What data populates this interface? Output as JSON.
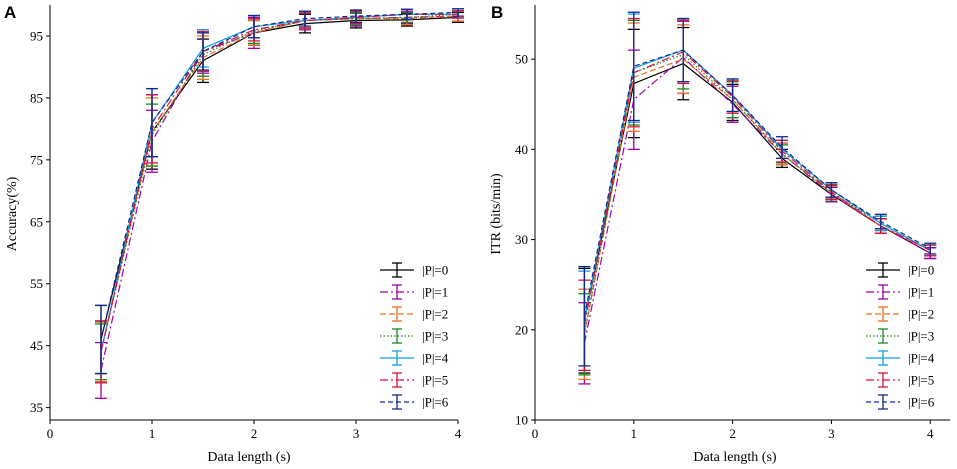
{
  "chart_data": [
    {
      "type": "line",
      "panel": "A",
      "title": "",
      "xlabel": "Data length (s)",
      "ylabel": "Accuracy(%)",
      "xlim": [
        0,
        4
      ],
      "ylim": [
        33,
        100
      ],
      "xticks": [
        0,
        1,
        2,
        3,
        4
      ],
      "yticks": [
        35,
        45,
        55,
        65,
        75,
        85,
        95
      ],
      "x": [
        0.5,
        1,
        1.5,
        2,
        2.5,
        3,
        3.5,
        4
      ],
      "series": [
        {
          "name": "|P|=0",
          "color": "#000000",
          "dash": "",
          "values": [
            46.0,
            79.5,
            91.0,
            95.5,
            97.0,
            97.5,
            97.6,
            98.0
          ],
          "err": [
            5.5,
            6.0,
            3.5,
            2.0,
            1.5,
            1.2,
            1.0,
            0.8
          ]
        },
        {
          "name": "|P|=1",
          "color": "#a000a8",
          "dash": "8,3,2,3",
          "values": [
            41.0,
            78.0,
            92.5,
            95.5,
            97.5,
            97.8,
            98.0,
            98.2
          ],
          "err": [
            4.5,
            5.0,
            3.5,
            2.5,
            1.5,
            1.2,
            1.0,
            0.8
          ]
        },
        {
          "name": "|P|=2",
          "color": "#e87020",
          "dash": "6,3",
          "values": [
            44.0,
            79.5,
            91.5,
            95.5,
            97.5,
            97.8,
            97.8,
            98.2
          ],
          "err": [
            4.8,
            5.5,
            3.5,
            2.0,
            1.3,
            1.0,
            1.0,
            0.8
          ]
        },
        {
          "name": "|P|=3",
          "color": "#1a8a1a",
          "dash": "1.5,2",
          "values": [
            44.0,
            79.0,
            92.0,
            95.8,
            97.5,
            97.8,
            98.0,
            98.5
          ],
          "err": [
            4.5,
            5.0,
            3.5,
            2.0,
            1.2,
            1.0,
            0.8,
            0.6
          ]
        },
        {
          "name": "|P|=4",
          "color": "#10a0e8",
          "dash": "",
          "values": [
            44.0,
            81.0,
            93.0,
            96.5,
            97.5,
            98.0,
            98.5,
            98.5
          ],
          "err": [
            5.0,
            5.5,
            3.0,
            1.8,
            1.2,
            1.0,
            0.8,
            0.6
          ]
        },
        {
          "name": "|P|=5",
          "color": "#e0103c",
          "dash": "8,3,2,3",
          "values": [
            44.0,
            80.0,
            92.5,
            96.0,
            97.5,
            98.0,
            98.5,
            98.5
          ],
          "err": [
            5.0,
            5.5,
            3.2,
            1.8,
            1.2,
            1.0,
            0.8,
            0.6
          ]
        },
        {
          "name": "|P|=6",
          "color": "#102a8c",
          "dash": "5,3",
          "values": [
            46.0,
            81.0,
            92.5,
            96.5,
            97.8,
            98.2,
            98.5,
            98.8
          ],
          "err": [
            5.5,
            5.5,
            3.0,
            1.8,
            1.2,
            1.0,
            0.8,
            0.6
          ]
        }
      ]
    },
    {
      "type": "line",
      "panel": "B",
      "title": "",
      "xlabel": "Data length (s)",
      "ylabel": "ITR (bits/min)",
      "xlim": [
        0,
        4.2
      ],
      "ylim": [
        10,
        56
      ],
      "xticks": [
        0,
        1,
        2,
        3,
        4
      ],
      "yticks": [
        10,
        20,
        30,
        40,
        50
      ],
      "x": [
        0.5,
        1,
        1.5,
        2,
        2.5,
        3,
        3.5,
        4
      ],
      "series": [
        {
          "name": "|P|=0",
          "color": "#000000",
          "dash": "",
          "values": [
            21.0,
            47.3,
            49.5,
            45.2,
            39.0,
            35.0,
            31.5,
            28.5
          ],
          "err": [
            5.8,
            6.0,
            4.0,
            2.0,
            1.0,
            0.8,
            0.8,
            0.6
          ]
        },
        {
          "name": "|P|=1",
          "color": "#a000a8",
          "dash": "8,3,2,3",
          "values": [
            18.5,
            45.5,
            50.2,
            45.0,
            39.5,
            35.0,
            31.5,
            28.5
          ],
          "err": [
            4.5,
            5.5,
            4.0,
            2.0,
            1.2,
            0.8,
            0.8,
            0.6
          ]
        },
        {
          "name": "|P|=2",
          "color": "#e87020",
          "dash": "6,3",
          "values": [
            19.5,
            48.0,
            50.0,
            45.5,
            39.5,
            35.2,
            31.5,
            28.8
          ],
          "err": [
            5.0,
            6.0,
            3.8,
            2.0,
            1.2,
            0.8,
            0.8,
            0.6
          ]
        },
        {
          "name": "|P|=3",
          "color": "#1a8a1a",
          "dash": "1.5,2",
          "values": [
            19.5,
            48.5,
            50.5,
            45.5,
            39.5,
            35.2,
            31.8,
            28.8
          ],
          "err": [
            4.5,
            5.8,
            3.8,
            2.0,
            1.0,
            0.8,
            0.8,
            0.6
          ]
        },
        {
          "name": "|P|=4",
          "color": "#10a0e8",
          "dash": "",
          "values": [
            21.0,
            49.0,
            51.0,
            46.0,
            40.0,
            35.5,
            31.8,
            28.8
          ],
          "err": [
            5.5,
            6.0,
            3.5,
            1.8,
            1.0,
            0.8,
            0.8,
            0.6
          ]
        },
        {
          "name": "|P|=5",
          "color": "#e0103c",
          "dash": "8,3,2,3",
          "values": [
            20.5,
            48.5,
            50.8,
            45.8,
            39.8,
            35.3,
            31.5,
            28.8
          ],
          "err": [
            5.0,
            6.0,
            3.5,
            1.8,
            1.2,
            0.8,
            0.8,
            0.6
          ]
        },
        {
          "name": "|P|=6",
          "color": "#102a8c",
          "dash": "5,3",
          "values": [
            21.5,
            49.2,
            51.0,
            46.0,
            40.2,
            35.5,
            32.0,
            29.0
          ],
          "err": [
            5.5,
            6.0,
            3.5,
            1.8,
            1.2,
            0.8,
            0.8,
            0.6
          ]
        }
      ]
    }
  ]
}
